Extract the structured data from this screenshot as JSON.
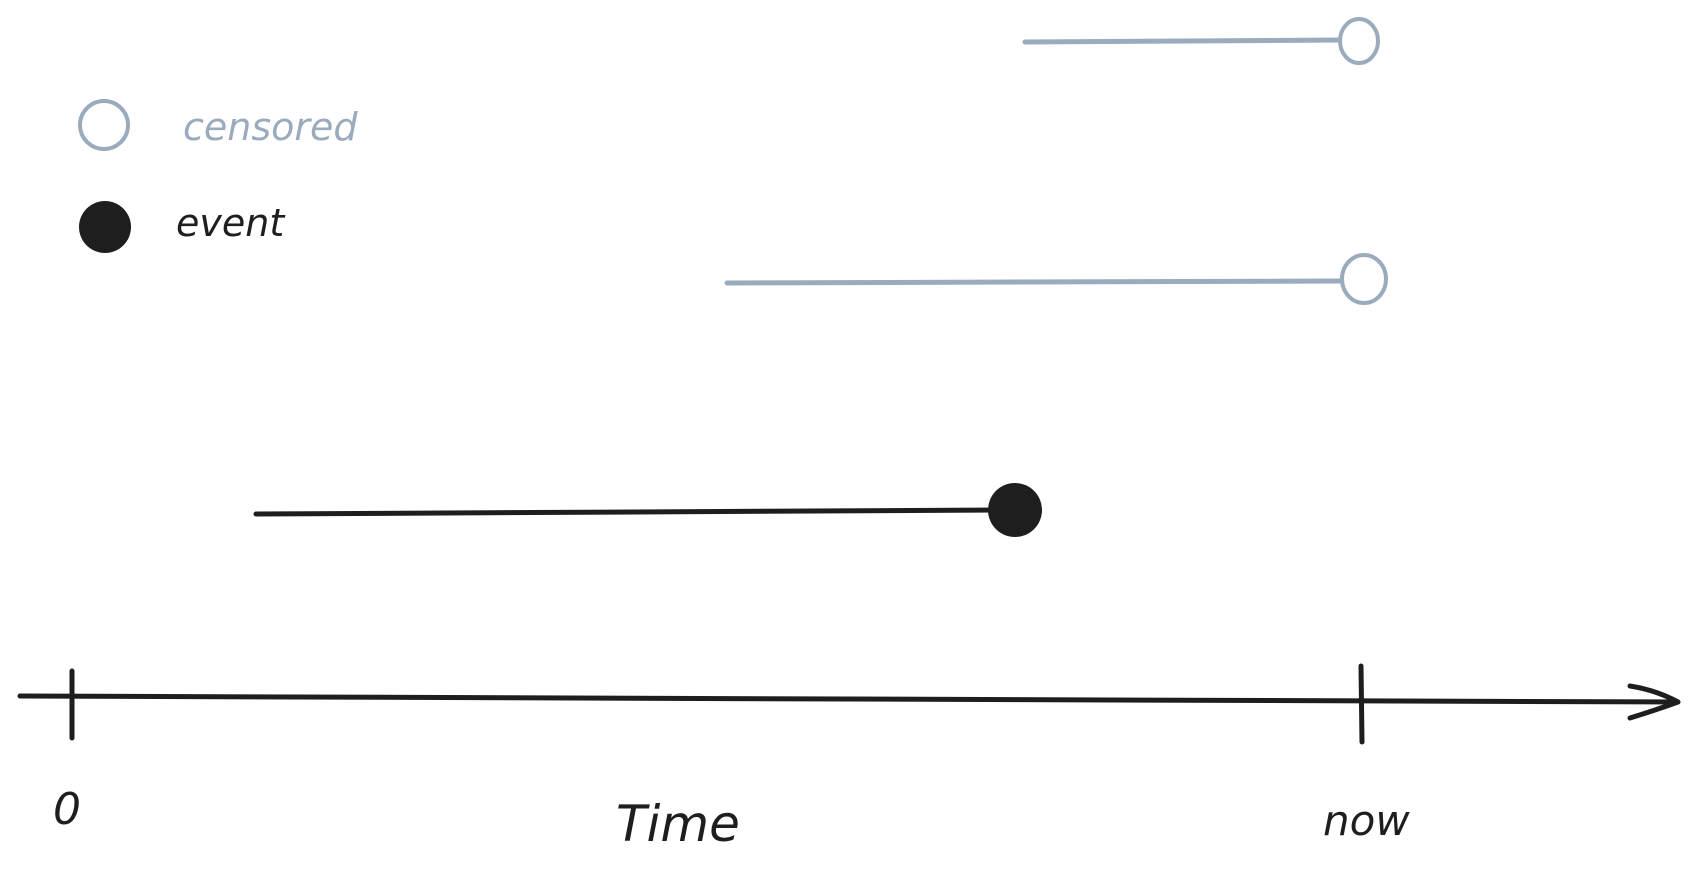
{
  "legend": {
    "censored_label": "censored",
    "event_label": "event"
  },
  "axis": {
    "label": "Time",
    "start_tick_label": "0",
    "end_tick_label": "now"
  },
  "subjects": [
    {
      "id": "subject-1",
      "outcome": "censored"
    },
    {
      "id": "subject-2",
      "outcome": "censored"
    },
    {
      "id": "subject-3",
      "outcome": "event"
    }
  ],
  "colors": {
    "censored": "#9aabbd",
    "event": "#1e1e1e",
    "axis": "#1e1e1e",
    "background": "#ffffff"
  }
}
